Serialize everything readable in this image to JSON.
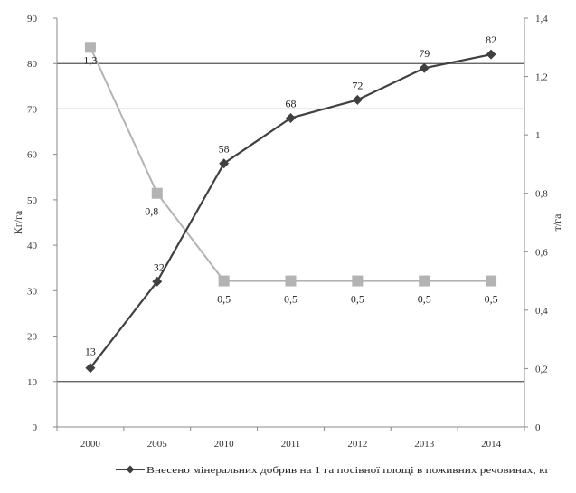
{
  "chart_data": {
    "type": "line",
    "categories": [
      "2000",
      "2005",
      "2010",
      "2011",
      "2012",
      "2013",
      "2014"
    ],
    "y_left": {
      "label": "Кг/га",
      "ylim": [
        0,
        90
      ],
      "ticks": [
        "0",
        "10",
        "20",
        "30",
        "40",
        "50",
        "60",
        "70",
        "80",
        "90"
      ]
    },
    "y_right": {
      "label": "т/га",
      "ylim": [
        0,
        1.4
      ],
      "ticks": [
        "0",
        "0,2",
        "0,4",
        "0,6",
        "0,8",
        "1",
        "1,2",
        "1,4"
      ]
    },
    "grid": "horizontal at 10, 70, 80 (left axis)",
    "legend_position": "bottom",
    "series": [
      {
        "name": "Внесено мінеральних добрив на 1 га посівної площі в поживних речовинах, кг",
        "axis": "left",
        "marker": "diamond",
        "color": "#404040",
        "values": [
          13,
          32,
          58,
          68,
          72,
          79,
          82
        ],
        "labels": [
          "13",
          "32",
          "58",
          "68",
          "72",
          "79",
          "82"
        ]
      },
      {
        "axis": "right",
        "marker": "square",
        "color": "#b3b3b3",
        "values": [
          1.3,
          0.8,
          0.5,
          0.5,
          0.5,
          0.5,
          0.5
        ],
        "labels": [
          "1,3",
          "0,8",
          "0,5",
          "0,5",
          "0,5",
          "0,5",
          "0,5"
        ]
      }
    ]
  }
}
